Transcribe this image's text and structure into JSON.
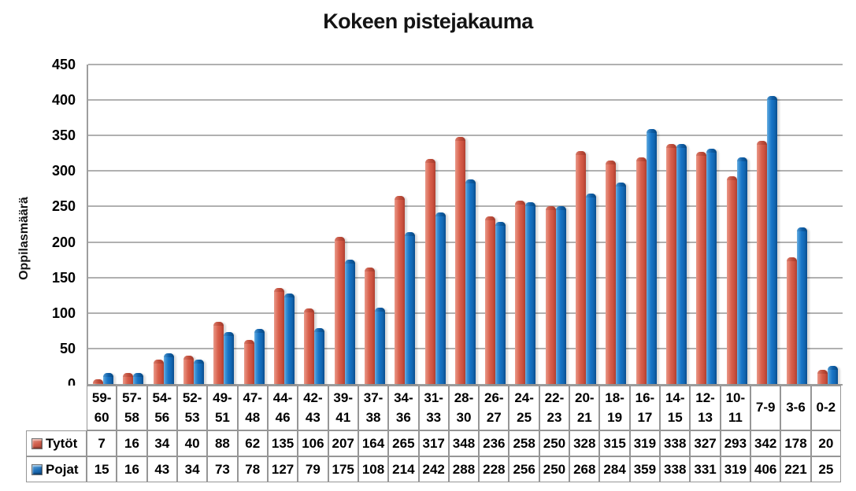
{
  "window": {
    "background": "#ffffff"
  },
  "chart": {
    "title": "Kokeen pistejakauma",
    "y_axis": {
      "label": "Oppilasmäärä",
      "ticks": [
        450,
        400,
        350,
        300,
        250,
        200,
        150,
        100,
        50,
        0
      ]
    }
  },
  "chart_data": {
    "type": "bar",
    "title": "Kokeen pistejakauma",
    "xlabel": "",
    "ylabel": "Oppilasmäärä",
    "ylim": [
      0,
      450
    ],
    "ytick_step": 50,
    "grid": true,
    "legend_position": "data-table-left",
    "categories": [
      "59-60",
      "57-58",
      "54-56",
      "52-53",
      "49-51",
      "47-48",
      "44-46",
      "42-43",
      "39-41",
      "37-38",
      "34-36",
      "31-33",
      "28-30",
      "26-27",
      "24-25",
      "22-23",
      "20-21",
      "18-19",
      "16-17",
      "14-15",
      "12-13",
      "10-11",
      "7-9",
      "3-6",
      "0-2"
    ],
    "series": [
      {
        "name": "Tytöt",
        "color": "#D5604D",
        "values": [
          7,
          16,
          34,
          40,
          88,
          62,
          135,
          106,
          207,
          164,
          265,
          317,
          348,
          236,
          258,
          250,
          328,
          315,
          319,
          338,
          327,
          293,
          342,
          178,
          20
        ]
      },
      {
        "name": "Pojat",
        "color": "#1B74C5",
        "values": [
          15,
          16,
          43,
          34,
          73,
          78,
          127,
          79,
          175,
          108,
          214,
          242,
          288,
          228,
          256,
          250,
          268,
          284,
          359,
          338,
          331,
          319,
          406,
          221,
          25
        ]
      }
    ]
  },
  "colors": {
    "gridline": "#B0B0B0",
    "axis": "#9E9E9E",
    "table_border": "#969696",
    "text": "#000000"
  }
}
